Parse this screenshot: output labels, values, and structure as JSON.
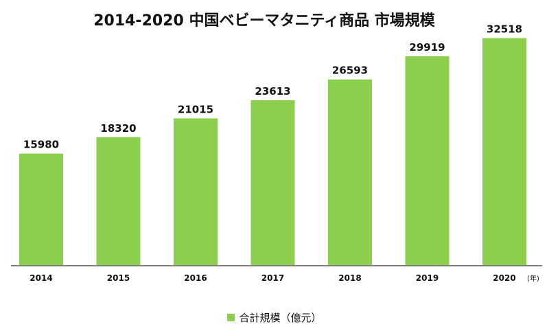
{
  "chart_data": {
    "type": "bar",
    "title": "2014-2020 中国ベビーマタニティ商品 市場規模",
    "categories": [
      "2014",
      "2015",
      "2016",
      "2017",
      "2018",
      "2019",
      "2020"
    ],
    "series": [
      {
        "name": "合計規模（億元）",
        "values": [
          15980,
          18320,
          21015,
          23613,
          26593,
          29919,
          32518
        ],
        "color": "#8ccf4d"
      }
    ],
    "xlabel": "",
    "x_unit": "(年)",
    "ylabel": "",
    "ylim": [
      0,
      34000
    ],
    "grid": false,
    "legend_position": "bottom"
  }
}
